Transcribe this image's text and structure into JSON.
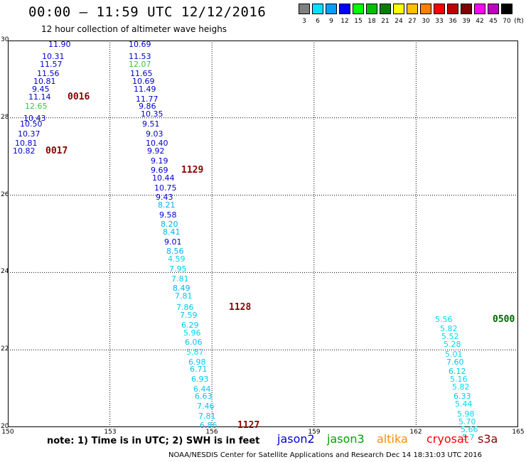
{
  "title": "00:00 – 11:59 UTC 12/12/2016",
  "subtitle": "12 hour collection of altimeter wave heighs",
  "legend": {
    "unit": "(ft)",
    "bins": [
      {
        "label": "3",
        "color": "#808080"
      },
      {
        "label": "6",
        "color": "#00e0ff"
      },
      {
        "label": "9",
        "color": "#00a0ff"
      },
      {
        "label": "12",
        "color": "#0000ff"
      },
      {
        "label": "15",
        "color": "#00ff00"
      },
      {
        "label": "18",
        "color": "#00c000"
      },
      {
        "label": "21",
        "color": "#008000"
      },
      {
        "label": "24",
        "color": "#ffff00"
      },
      {
        "label": "27",
        "color": "#ffc000"
      },
      {
        "label": "30",
        "color": "#ff8000"
      },
      {
        "label": "33",
        "color": "#ff0000"
      },
      {
        "label": "36",
        "color": "#c00000"
      },
      {
        "label": "39",
        "color": "#800000"
      },
      {
        "label": "42",
        "color": "#ff00ff"
      },
      {
        "label": "45",
        "color": "#c000c0"
      },
      {
        "label": "70",
        "color": "#000000"
      }
    ]
  },
  "map": {
    "lon_range": [
      150,
      165
    ],
    "lat_range": [
      20,
      30
    ],
    "x_ticks": [
      "150",
      "153",
      "156",
      "159",
      "162",
      "165"
    ],
    "y_ticks": [
      "30",
      "28",
      "26",
      "24",
      "22",
      "20"
    ]
  },
  "colors": {
    "jason2": "#0000cc",
    "jason3": "#00a000",
    "altika": "#ff8c00",
    "cryosat": "#ff0000",
    "s3a": "#8b0000",
    "time_label": "#8b0000",
    "jason3_time": "#006400",
    "grid": "#000000"
  },
  "observations": [
    {
      "lon": 151.2,
      "lat": 29.9,
      "value": "11.90",
      "color": "#0000cc"
    },
    {
      "lon": 151.0,
      "lat": 29.6,
      "value": "10.31",
      "color": "#0000cc"
    },
    {
      "lon": 150.95,
      "lat": 29.4,
      "value": "11.57",
      "color": "#0000cc"
    },
    {
      "lon": 150.85,
      "lat": 29.15,
      "value": "11.56",
      "color": "#0000cc"
    },
    {
      "lon": 150.75,
      "lat": 28.95,
      "value": "10.81",
      "color": "#0000cc"
    },
    {
      "lon": 150.7,
      "lat": 28.75,
      "value": "9.45",
      "color": "#0000cc"
    },
    {
      "lon": 150.6,
      "lat": 28.55,
      "value": "11.14",
      "color": "#0000cc"
    },
    {
      "lon": 150.5,
      "lat": 28.3,
      "value": "12.65",
      "color": "#40c040"
    },
    {
      "lon": 150.45,
      "lat": 28.0,
      "value": "10.43",
      "color": "#0000cc"
    },
    {
      "lon": 150.35,
      "lat": 27.85,
      "value": "10.50",
      "color": "#0000cc"
    },
    {
      "lon": 150.3,
      "lat": 27.6,
      "value": "10.37",
      "color": "#0000cc"
    },
    {
      "lon": 150.2,
      "lat": 27.35,
      "value": "10.81",
      "color": "#0000cc"
    },
    {
      "lon": 150.15,
      "lat": 27.15,
      "value": "10.82",
      "color": "#0000cc"
    },
    {
      "lon": 153.55,
      "lat": 29.9,
      "value": "10.69",
      "color": "#0000cc"
    },
    {
      "lon": 153.55,
      "lat": 29.6,
      "value": "11.53",
      "color": "#0000cc"
    },
    {
      "lon": 153.55,
      "lat": 29.4,
      "value": "12.07",
      "color": "#40c040"
    },
    {
      "lon": 153.6,
      "lat": 29.15,
      "value": "11.65",
      "color": "#0000cc"
    },
    {
      "lon": 153.65,
      "lat": 28.95,
      "value": "10.69",
      "color": "#0000cc"
    },
    {
      "lon": 153.7,
      "lat": 28.75,
      "value": "11.49",
      "color": "#0000cc"
    },
    {
      "lon": 153.75,
      "lat": 28.5,
      "value": "11.77",
      "color": "#0000cc"
    },
    {
      "lon": 153.85,
      "lat": 28.3,
      "value": "9.86",
      "color": "#0000cc"
    },
    {
      "lon": 153.9,
      "lat": 28.1,
      "value": "10.35",
      "color": "#0000cc"
    },
    {
      "lon": 153.95,
      "lat": 27.85,
      "value": "9.51",
      "color": "#0000cc"
    },
    {
      "lon": 154.05,
      "lat": 27.6,
      "value": "9.03",
      "color": "#0000cc"
    },
    {
      "lon": 154.05,
      "lat": 27.35,
      "value": "10.40",
      "color": "#0000cc"
    },
    {
      "lon": 154.1,
      "lat": 27.15,
      "value": "9.92",
      "color": "#0000cc"
    },
    {
      "lon": 154.2,
      "lat": 26.9,
      "value": "9.19",
      "color": "#0000cc"
    },
    {
      "lon": 154.2,
      "lat": 26.65,
      "value": "9.69",
      "color": "#0000cc"
    },
    {
      "lon": 154.25,
      "lat": 26.45,
      "value": "10.44",
      "color": "#0000cc"
    },
    {
      "lon": 154.3,
      "lat": 26.2,
      "value": "10.75",
      "color": "#0000cc"
    },
    {
      "lon": 154.35,
      "lat": 25.95,
      "value": "9.43",
      "color": "#0000cc"
    },
    {
      "lon": 154.4,
      "lat": 25.75,
      "value": "8.21",
      "color": "#00b0f0"
    },
    {
      "lon": 154.45,
      "lat": 25.5,
      "value": "9.58",
      "color": "#0000cc"
    },
    {
      "lon": 154.5,
      "lat": 25.25,
      "value": "8.20",
      "color": "#00b0f0"
    },
    {
      "lon": 154.55,
      "lat": 25.05,
      "value": "8.41",
      "color": "#00b0f0"
    },
    {
      "lon": 154.6,
      "lat": 24.8,
      "value": "9.01",
      "color": "#0000cc"
    },
    {
      "lon": 154.65,
      "lat": 24.55,
      "value": "8.56",
      "color": "#00b0f0"
    },
    {
      "lon": 154.7,
      "lat": 24.35,
      "value": "4.59",
      "color": "#00d8f0"
    },
    {
      "lon": 154.75,
      "lat": 24.1,
      "value": "7.95",
      "color": "#00c8f0"
    },
    {
      "lon": 154.8,
      "lat": 23.85,
      "value": "7.81",
      "color": "#00c8f0"
    },
    {
      "lon": 154.85,
      "lat": 23.6,
      "value": "8.49",
      "color": "#00b0f0"
    },
    {
      "lon": 154.9,
      "lat": 23.4,
      "value": "7.81",
      "color": "#00c8f0"
    },
    {
      "lon": 154.95,
      "lat": 23.1,
      "value": "7.86",
      "color": "#00c8f0"
    },
    {
      "lon": 155.05,
      "lat": 22.9,
      "value": "7.59",
      "color": "#00c8f0"
    },
    {
      "lon": 155.1,
      "lat": 22.65,
      "value": "6.29",
      "color": "#00c8f0"
    },
    {
      "lon": 155.15,
      "lat": 22.45,
      "value": "5.96",
      "color": "#00d8f0"
    },
    {
      "lon": 155.2,
      "lat": 22.2,
      "value": "6.06",
      "color": "#00c8f0"
    },
    {
      "lon": 155.25,
      "lat": 21.95,
      "value": "5.87",
      "color": "#00d8f0"
    },
    {
      "lon": 155.3,
      "lat": 21.7,
      "value": "6.98",
      "color": "#00c8f0"
    },
    {
      "lon": 155.35,
      "lat": 21.5,
      "value": "6.71",
      "color": "#00c8f0"
    },
    {
      "lon": 155.4,
      "lat": 21.25,
      "value": "6.93",
      "color": "#00c8f0"
    },
    {
      "lon": 155.45,
      "lat": 21.0,
      "value": "6.44",
      "color": "#00c8f0"
    },
    {
      "lon": 155.5,
      "lat": 20.8,
      "value": "6.63",
      "color": "#00c8f0"
    },
    {
      "lon": 155.55,
      "lat": 20.55,
      "value": "7.46",
      "color": "#00c8f0"
    },
    {
      "lon": 155.6,
      "lat": 20.3,
      "value": "7.81",
      "color": "#00c8f0"
    },
    {
      "lon": 155.65,
      "lat": 20.05,
      "value": "6.86",
      "color": "#00c8f0"
    },
    {
      "lon": 162.55,
      "lat": 22.8,
      "value": "5.56",
      "color": "#00d8f0"
    },
    {
      "lon": 162.7,
      "lat": 22.55,
      "value": "5.82",
      "color": "#00d8f0"
    },
    {
      "lon": 162.75,
      "lat": 22.35,
      "value": "5.52",
      "color": "#00d8f0"
    },
    {
      "lon": 162.8,
      "lat": 22.15,
      "value": "5.28",
      "color": "#00d8f0"
    },
    {
      "lon": 162.85,
      "lat": 21.9,
      "value": "5.01",
      "color": "#00d8f0"
    },
    {
      "lon": 162.9,
      "lat": 21.7,
      "value": "7.60",
      "color": "#00c8f0"
    },
    {
      "lon": 162.95,
      "lat": 21.45,
      "value": "6.12",
      "color": "#00c8f0"
    },
    {
      "lon": 163.0,
      "lat": 21.25,
      "value": "5.16",
      "color": "#00d8f0"
    },
    {
      "lon": 163.05,
      "lat": 21.05,
      "value": "5.82",
      "color": "#00d8f0"
    },
    {
      "lon": 163.1,
      "lat": 20.8,
      "value": "6.33",
      "color": "#00c8f0"
    },
    {
      "lon": 163.15,
      "lat": 20.6,
      "value": "5.44",
      "color": "#00d8f0"
    },
    {
      "lon": 163.2,
      "lat": 20.35,
      "value": "5.98",
      "color": "#00d8f0"
    },
    {
      "lon": 163.25,
      "lat": 20.15,
      "value": "5.70",
      "color": "#00d8f0"
    },
    {
      "lon": 163.3,
      "lat": 19.95,
      "value": "5.66",
      "color": "#00d8f0"
    },
    {
      "lon": 163.35,
      "lat": 19.75,
      "value": "5.7",
      "color": "#00d8f0"
    }
  ],
  "time_labels": [
    {
      "lon": 151.75,
      "lat": 28.55,
      "text": "0016",
      "color": "#8b0000"
    },
    {
      "lon": 151.1,
      "lat": 27.15,
      "text": "0017",
      "color": "#8b0000"
    },
    {
      "lon": 155.1,
      "lat": 26.65,
      "text": "1129",
      "color": "#8b0000"
    },
    {
      "lon": 156.5,
      "lat": 23.1,
      "text": "1128",
      "color": "#8b0000"
    },
    {
      "lon": 156.75,
      "lat": 20.05,
      "text": "1127",
      "color": "#8b0000"
    },
    {
      "lon": 164.25,
      "lat": 22.8,
      "text": "0500",
      "color": "#006400"
    }
  ],
  "note": "note:  1) Time is in UTC;  2) SWH is in feet",
  "satellites": [
    {
      "name": "jason2",
      "color": "#0000cc"
    },
    {
      "name": "jason3",
      "color": "#00a000"
    },
    {
      "name": "altika",
      "color": "#ff8c00"
    },
    {
      "name": "cryosat",
      "color": "#ff0000"
    },
    {
      "name": "s3a",
      "color": "#8b0000"
    }
  ],
  "footer": "NOAA/NESDIS Center for Satellite Applications and Research    Dec 14 18:31:03 UTC 2016"
}
